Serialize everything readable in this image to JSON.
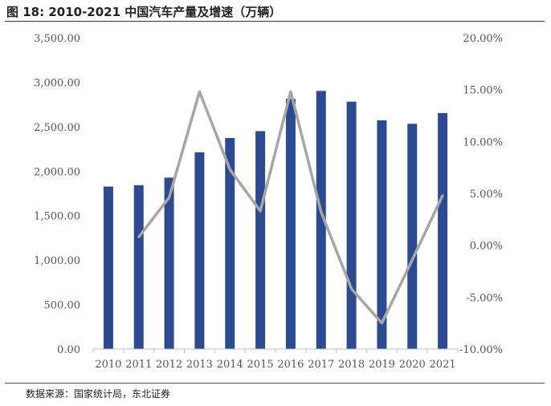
{
  "header": {
    "title": "图 18:  2010-2021 中国汽车产量及增速（万辆）"
  },
  "footer": {
    "source": "数据来源：国家统计局，东北证券"
  },
  "chart_data": {
    "type": "bar",
    "categories": [
      "2010",
      "2011",
      "2012",
      "2013",
      "2014",
      "2015",
      "2016",
      "2017",
      "2018",
      "2019",
      "2020",
      "2021"
    ],
    "series": [
      {
        "type": "bar",
        "axis": "left",
        "color": "#2e4a8f",
        "values": [
          1827,
          1842,
          1927,
          2212,
          2372,
          2450,
          2812,
          2902,
          2781,
          2572,
          2532,
          2653
        ]
      },
      {
        "type": "line",
        "axis": "right",
        "color": "#a6a6a6",
        "values": [
          null,
          0.8,
          4.6,
          14.8,
          7.3,
          3.3,
          14.8,
          3.2,
          -4.2,
          -7.5,
          -1.4,
          4.8
        ]
      }
    ],
    "y_left": {
      "ylim": [
        0,
        3500
      ],
      "ticks": [
        "0.00",
        "500.00",
        "1,000.00",
        "1,500.00",
        "2,000.00",
        "2,500.00",
        "3,000.00",
        "3,500.00"
      ]
    },
    "y_right": {
      "ylim": [
        -10,
        20
      ],
      "ticks": [
        "-10.00%",
        "-5.00%",
        "0.00%",
        "5.00%",
        "10.00%",
        "15.00%",
        "20.00%"
      ]
    },
    "grid": false,
    "legend": "none"
  }
}
